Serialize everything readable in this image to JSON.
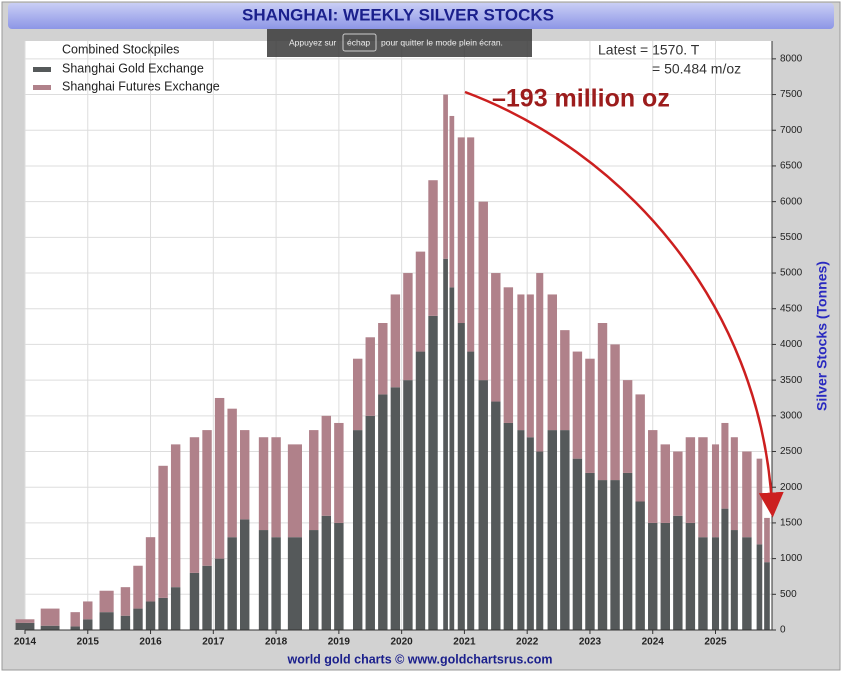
{
  "chart_data": {
    "type": "stacked_bar",
    "title": "SHANGHAI: WEEKLY SILVER STOCKS",
    "y_label": "Silver Stocks (Tonnes)",
    "footer": "world gold charts © www.goldchartsrus.com",
    "legend_title": "Combined Stockpiles",
    "annotations": [
      "Latest = 1570. T",
      "= 50.484 m/oz",
      "–193 million oz"
    ],
    "overlay": [
      "Appuyez sur",
      "échap",
      "pour quitter le mode plein écran."
    ],
    "x": [
      2014.0,
      2014.4,
      2014.8,
      2015.0,
      2015.3,
      2015.6,
      2015.8,
      2016.0,
      2016.2,
      2016.4,
      2016.7,
      2016.9,
      2017.1,
      2017.3,
      2017.5,
      2017.8,
      2018.0,
      2018.3,
      2018.6,
      2018.8,
      2019.0,
      2019.3,
      2019.5,
      2019.7,
      2019.9,
      2020.1,
      2020.3,
      2020.5,
      2020.7,
      2020.8,
      2020.95,
      2021.1,
      2021.3,
      2021.5,
      2021.7,
      2021.9,
      2022.05,
      2022.2,
      2022.4,
      2022.6,
      2022.8,
      2023.0,
      2023.2,
      2023.4,
      2023.6,
      2023.8,
      2024.0,
      2024.2,
      2024.4,
      2024.6,
      2024.8,
      2025.0,
      2025.15,
      2025.3,
      2025.5,
      2025.7,
      2025.82
    ],
    "series": [
      {
        "name": "Shanghai Gold Exchange",
        "color": "#55595a",
        "values": [
          100,
          60,
          50,
          150,
          250,
          200,
          300,
          400,
          450,
          600,
          800,
          900,
          1000,
          1300,
          1550,
          1400,
          1300,
          1300,
          1400,
          1600,
          1500,
          2800,
          3000,
          3300,
          3400,
          3500,
          3900,
          4400,
          5200,
          4800,
          4300,
          3900,
          3500,
          3200,
          2900,
          2800,
          2700,
          2500,
          2800,
          2800,
          2400,
          2200,
          2100,
          2100,
          2200,
          1800,
          1500,
          1500,
          1600,
          1500,
          1300,
          1300,
          1700,
          1400,
          1300,
          1200,
          950
        ]
      },
      {
        "name": "Shanghai Futures Exchange",
        "color": "#b0818a",
        "values": [
          50,
          240,
          200,
          250,
          300,
          400,
          600,
          900,
          1850,
          2000,
          1900,
          1900,
          2250,
          1800,
          1250,
          1300,
          1400,
          1300,
          1400,
          1400,
          1400,
          1000,
          1100,
          1000,
          1300,
          1500,
          1400,
          1900,
          2300,
          2400,
          2600,
          3000,
          2500,
          1800,
          1900,
          1900,
          2000,
          2500,
          1900,
          1400,
          1500,
          1600,
          2200,
          1900,
          1300,
          1500,
          1300,
          1100,
          900,
          1200,
          1400,
          1300,
          1200,
          1300,
          1200,
          1200,
          620
        ]
      }
    ],
    "xlim": [
      2014,
      2025.9
    ],
    "xticks": [
      2014,
      2015,
      2016,
      2017,
      2018,
      2019,
      2020,
      2021,
      2022,
      2023,
      2024,
      2025
    ],
    "ylim": [
      0,
      8250
    ],
    "yticks": [
      0,
      500,
      1000,
      1500,
      2000,
      2500,
      3000,
      3500,
      4000,
      4500,
      5000,
      5500,
      6000,
      6500,
      7000,
      7500,
      8000
    ],
    "grid": true
  }
}
